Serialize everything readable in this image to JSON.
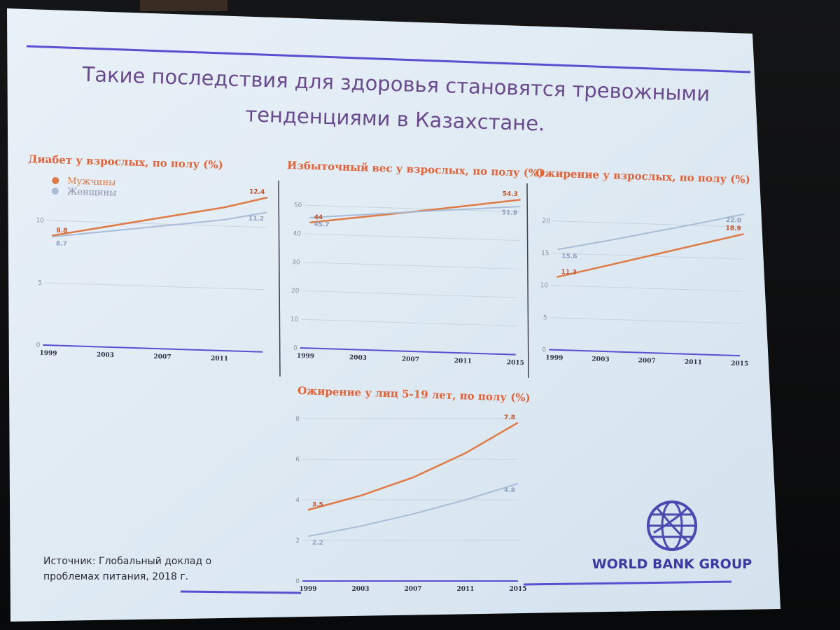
{
  "slide": {
    "title_line1": "Такие последствия для здоровья становятся тревожными",
    "title_line2": "тенденциями в Казахстане.",
    "source_line1": "Источник: Глобальный доклад о",
    "source_line2": "проблемах питания, 2018 г.",
    "logo_text": "WORLD BANK GROUP",
    "logo_icon": "globe-icon"
  },
  "colors": {
    "men": "#e07a45",
    "women": "#a9bcd6",
    "accent_line": "#5a4fd0",
    "title": "#6a4a8c",
    "chart_title": "#e0633a"
  },
  "legend": {
    "men": "Мужчины",
    "women": "Женщины"
  },
  "chart_data": [
    {
      "id": "diabetes",
      "type": "line",
      "title": "Диабет у взрослых, по полу (%)",
      "x": [
        "1999",
        "2003",
        "2007",
        "2011",
        "2014"
      ],
      "x_tick_labels": [
        "1999",
        "2003",
        "2007",
        "2011"
      ],
      "xlim": [
        1999,
        2014
      ],
      "ylim": [
        0,
        10
      ],
      "yticks": [
        0,
        5,
        10
      ],
      "series": [
        {
          "name": "Мужчины",
          "values": [
            8.8,
            9.7,
            10.6,
            11.5,
            12.4
          ]
        },
        {
          "name": "Женщины",
          "values": [
            8.7,
            9.3,
            9.9,
            10.5,
            11.2
          ]
        }
      ],
      "data_labels": [
        "8.8",
        "8.7",
        "12.4",
        "11.2"
      ]
    },
    {
      "id": "overweight",
      "type": "line",
      "title": "Избыточный вес у взрослых, по полу (%)",
      "x": [
        "1999",
        "2003",
        "2007",
        "2011",
        "2015"
      ],
      "xlim": [
        1999,
        2015
      ],
      "ylim": [
        0,
        50
      ],
      "yticks": [
        0,
        10,
        20,
        30,
        40,
        50
      ],
      "series": [
        {
          "name": "Мужчины",
          "values": [
            44,
            46.5,
            49,
            51.6,
            54.3
          ]
        },
        {
          "name": "Женщины",
          "values": [
            45.7,
            47.3,
            48.9,
            50.4,
            51.9
          ]
        }
      ],
      "data_labels": [
        "44",
        "45.7",
        "54.3",
        "51.9"
      ]
    },
    {
      "id": "obesity-adults",
      "type": "line",
      "title": "Ожирение у взрослых, по полу (%)",
      "x": [
        "1999",
        "2003",
        "2007",
        "2011",
        "2015"
      ],
      "xlim": [
        1999,
        2015
      ],
      "ylim": [
        0,
        20
      ],
      "yticks": [
        0,
        5,
        10,
        15,
        20
      ],
      "series": [
        {
          "name": "Мужчины",
          "values": [
            11.3,
            13.2,
            15.1,
            17.0,
            18.9
          ]
        },
        {
          "name": "Женщины",
          "values": [
            15.6,
            17.1,
            18.7,
            20.3,
            22.0
          ]
        }
      ],
      "data_labels": [
        "11.3",
        "15.6",
        "18.9",
        "22.0"
      ]
    },
    {
      "id": "obesity-youth",
      "type": "line",
      "title": "Ожирение у лиц 5-19 лет, по полу (%)",
      "x": [
        "1999",
        "2003",
        "2007",
        "2011",
        "2015"
      ],
      "xlim": [
        1999,
        2015
      ],
      "ylim": [
        0,
        8
      ],
      "yticks": [
        0,
        2,
        4,
        6,
        8
      ],
      "series": [
        {
          "name": "Мужчины",
          "values": [
            3.5,
            4.2,
            5.1,
            6.3,
            7.8
          ]
        },
        {
          "name": "Женщины",
          "values": [
            2.2,
            2.7,
            3.3,
            4.0,
            4.8
          ]
        }
      ],
      "data_labels": [
        "3.5",
        "2.2",
        "7.8",
        "4.8"
      ]
    }
  ]
}
